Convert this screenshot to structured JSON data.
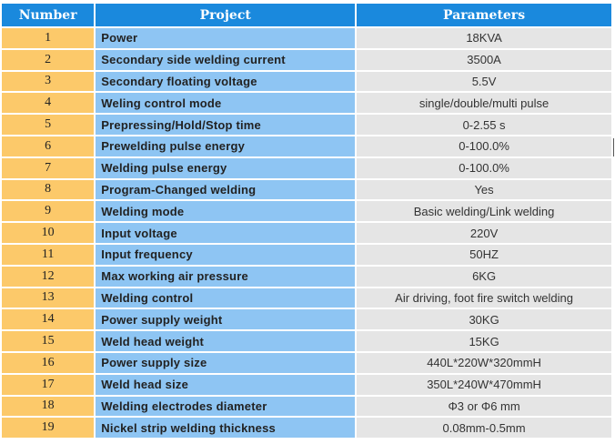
{
  "headers": {
    "number": "Number",
    "project": "Project",
    "parameters": "Parameters"
  },
  "rows": [
    {
      "n": "1",
      "project": "Power",
      "param": "18KVA"
    },
    {
      "n": "2",
      "project": "Secondary side welding current",
      "param": "3500A"
    },
    {
      "n": "3",
      "project": "Secondary floating voltage",
      "param": "5.5V"
    },
    {
      "n": "4",
      "project": "Weling control mode",
      "param": "single/double/multi pulse"
    },
    {
      "n": "5",
      "project": "Prepressing/Hold/Stop time",
      "param": "0-2.55 s"
    },
    {
      "n": "6",
      "project": "Prewelding pulse energy",
      "param": "0-100.0%"
    },
    {
      "n": "7",
      "project": "Welding pulse energy",
      "param": "0-100.0%"
    },
    {
      "n": "8",
      "project": "Program-Changed welding",
      "param": "Yes"
    },
    {
      "n": "9",
      "project": "Welding mode",
      "param": "Basic welding/Link welding"
    },
    {
      "n": "10",
      "project": "Input voltage",
      "param": "220V"
    },
    {
      "n": "11",
      "project": "Input frequency",
      "param": "50HZ"
    },
    {
      "n": "12",
      "project": "Max working air pressure",
      "param": "6KG"
    },
    {
      "n": "13",
      "project": "Welding control",
      "param": "Air driving, foot fire switch welding"
    },
    {
      "n": "14",
      "project": "Power supply weight",
      "param": "30KG"
    },
    {
      "n": "15",
      "project": "Weld head weight",
      "param": "15KG"
    },
    {
      "n": "16",
      "project": "Power supply size",
      "param": "440L*220W*320mmH"
    },
    {
      "n": "17",
      "project": "Weld head size",
      "param": "350L*240W*470mmH"
    },
    {
      "n": "18",
      "project": "Welding electrodes diameter",
      "param": "Φ3 or Φ6 mm"
    },
    {
      "n": "19",
      "project": "Nickel strip welding thickness",
      "param": "0.08mm-0.5mm"
    }
  ]
}
